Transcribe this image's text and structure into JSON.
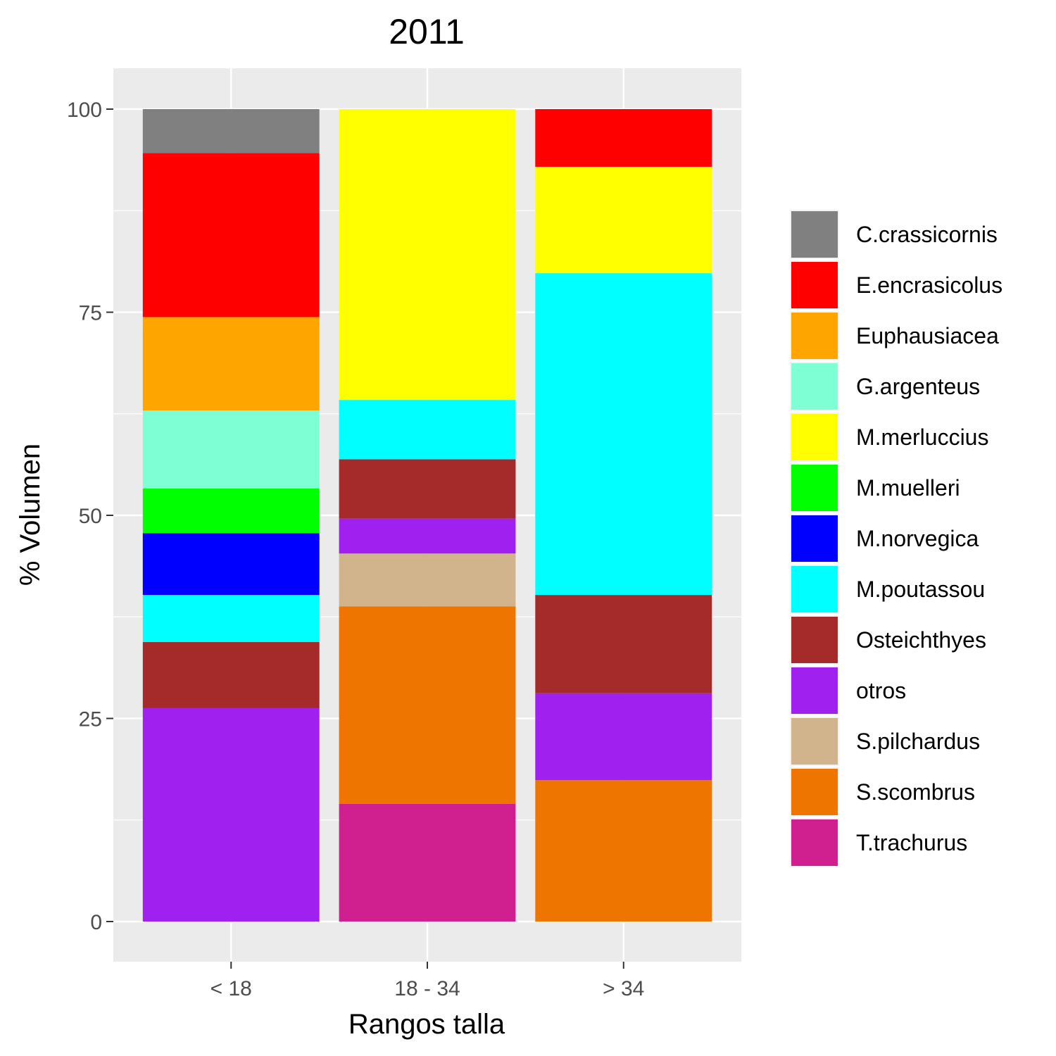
{
  "chart_data": {
    "type": "bar",
    "stacked": true,
    "title": "2011",
    "xlabel": "Rangos talla",
    "ylabel": "% Volumen",
    "ylim": [
      -4.8,
      104.8
    ],
    "yticks": [
      0,
      25,
      50,
      75,
      100
    ],
    "categories": [
      "< 18",
      "18 - 34",
      "> 34"
    ],
    "grid": true,
    "legend_position": "right",
    "series": [
      {
        "name": "C.crassicornis",
        "color": "#808080",
        "values": [
          5.4,
          0,
          0
        ]
      },
      {
        "name": "E.encrasicolus",
        "color": "#FF0000",
        "values": [
          20.2,
          0,
          7.1
        ]
      },
      {
        "name": "Euphausiacea",
        "color": "#FFA500",
        "values": [
          11.5,
          0,
          0
        ]
      },
      {
        "name": "G.argenteus",
        "color": "#7FFFD4",
        "values": [
          9.6,
          0,
          0
        ]
      },
      {
        "name": "M.merluccius",
        "color": "#FFFF00",
        "values": [
          0,
          35.8,
          13.1
        ]
      },
      {
        "name": "M.muelleri",
        "color": "#00FF00",
        "values": [
          5.5,
          0,
          0
        ]
      },
      {
        "name": "M.norvegica",
        "color": "#0000FF",
        "values": [
          7.6,
          0,
          0
        ]
      },
      {
        "name": "M.poutassou",
        "color": "#00FFFF",
        "values": [
          5.8,
          7.3,
          39.6
        ]
      },
      {
        "name": "Osteichthyes",
        "color": "#A52A2A",
        "values": [
          8.1,
          7.3,
          12.1
        ]
      },
      {
        "name": "otros",
        "color": "#A020F0",
        "values": [
          26.3,
          4.3,
          10.7
        ]
      },
      {
        "name": "S.pilchardus",
        "color": "#D2B48C",
        "values": [
          0,
          6.5,
          0
        ]
      },
      {
        "name": "S.scombrus",
        "color": "#EE7600",
        "values": [
          0,
          24.3,
          17.4
        ]
      },
      {
        "name": "T.trachurus",
        "color": "#D02090",
        "values": [
          0,
          14.5,
          0
        ]
      }
    ]
  }
}
